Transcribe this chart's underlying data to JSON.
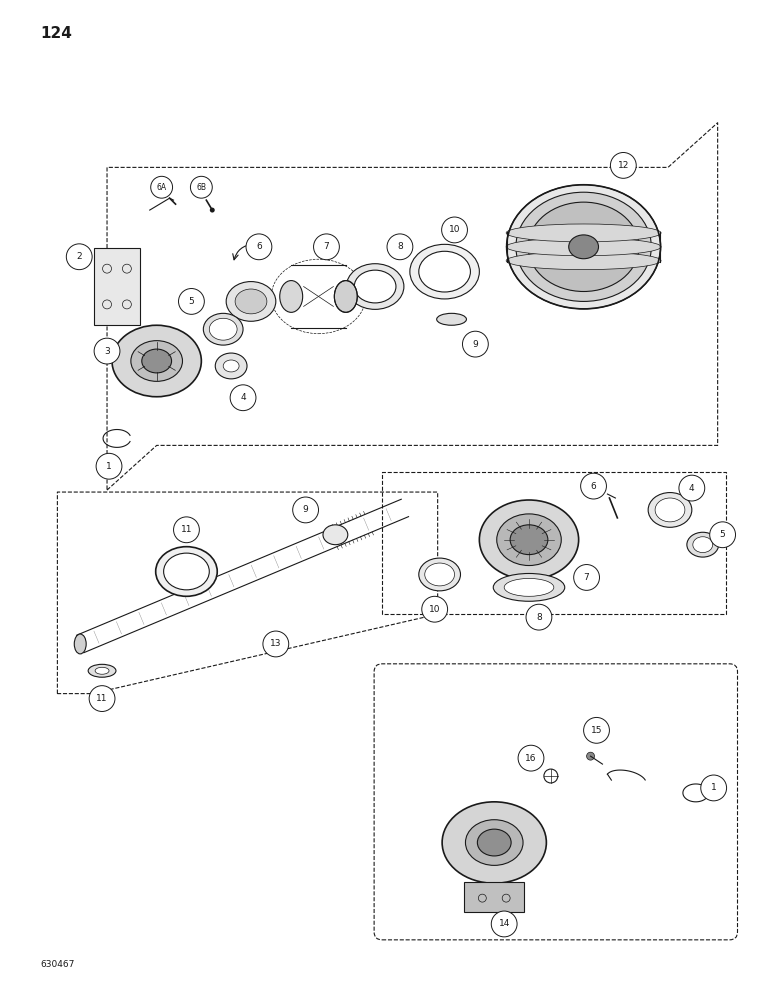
{
  "page_number": "124",
  "footer_label": "630467",
  "background_color": "#ffffff",
  "line_color": "#1a1a1a",
  "fig_width": 7.8,
  "fig_height": 10.0,
  "dpi": 100
}
